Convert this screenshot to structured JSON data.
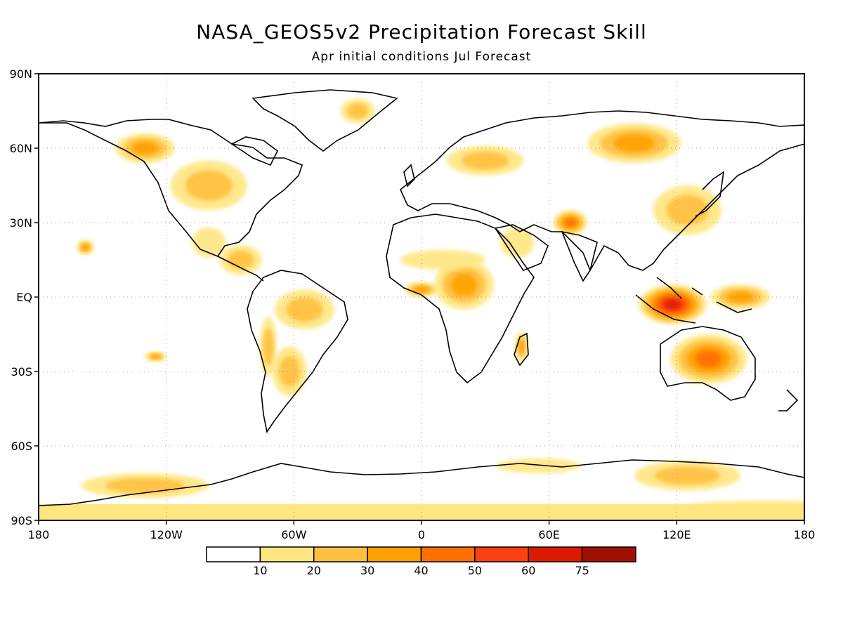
{
  "title": "NASA_GEOS5v2 Precipitation Forecast Skill",
  "subtitle": "Apr initial conditions  Jul Forecast",
  "map": {
    "type": "heatmap",
    "lat_labels": [
      "90N",
      "60N",
      "30N",
      "EQ",
      "30S",
      "60S",
      "90S"
    ],
    "lat_values": [
      90,
      60,
      30,
      0,
      -30,
      -60,
      -90
    ],
    "lon_labels": [
      "180",
      "120W",
      "60W",
      "0",
      "60E",
      "120E",
      "180"
    ],
    "lon_values": [
      -180,
      -120,
      -60,
      0,
      60,
      120,
      180
    ],
    "xlim": [
      -180,
      180
    ],
    "ylim": [
      -90,
      90
    ],
    "grid": true
  },
  "colorbar": {
    "labels": [
      "10",
      "20",
      "30",
      "40",
      "50",
      "60",
      "75"
    ],
    "colors": [
      "#ffffff",
      "#ffe680",
      "#ffc040",
      "#ffa000",
      "#ff7000",
      "#ff4010",
      "#dd1a00",
      "#a01000"
    ]
  },
  "regions": [
    {
      "name": "indonesia-maritime-continent",
      "lon": 118,
      "lat": -3,
      "rx": 16,
      "ry": 8,
      "level": 6
    },
    {
      "name": "australia-interior",
      "lon": 135,
      "lat": -25,
      "rx": 18,
      "ry": 10,
      "level": 4
    },
    {
      "name": "central-africa",
      "lon": 20,
      "lat": 5,
      "rx": 14,
      "ry": 10,
      "level": 3
    },
    {
      "name": "gulf-of-guinea",
      "lon": 0,
      "lat": 3,
      "rx": 8,
      "ry": 3,
      "level": 3
    },
    {
      "name": "pakistan-india",
      "lon": 70,
      "lat": 30,
      "rx": 8,
      "ry": 5,
      "level": 4
    },
    {
      "name": "siberia",
      "lon": 100,
      "lat": 62,
      "rx": 22,
      "ry": 8,
      "level": 3
    },
    {
      "name": "eastern-europe",
      "lon": 30,
      "lat": 55,
      "rx": 18,
      "ry": 6,
      "level": 2
    },
    {
      "name": "alaska-canada",
      "lon": -130,
      "lat": 60,
      "rx": 14,
      "ry": 6,
      "level": 3
    },
    {
      "name": "central-north-america",
      "lon": -100,
      "lat": 45,
      "rx": 18,
      "ry": 10,
      "level": 2
    },
    {
      "name": "brazil",
      "lon": -55,
      "lat": -5,
      "rx": 14,
      "ry": 8,
      "level": 2
    },
    {
      "name": "central-america",
      "lon": -85,
      "lat": 15,
      "rx": 10,
      "ry": 6,
      "level": 2
    },
    {
      "name": "south-america-south",
      "lon": -62,
      "lat": -30,
      "rx": 8,
      "ry": 10,
      "level": 2
    },
    {
      "name": "china-japan",
      "lon": 125,
      "lat": 35,
      "rx": 16,
      "ry": 10,
      "level": 2
    },
    {
      "name": "new-guinea-pacific",
      "lon": 150,
      "lat": 0,
      "rx": 14,
      "ry": 5,
      "level": 3
    },
    {
      "name": "southern-ocean-east",
      "lon": 125,
      "lat": -72,
      "rx": 25,
      "ry": 6,
      "level": 2
    },
    {
      "name": "southern-ocean-west",
      "lon": -130,
      "lat": -76,
      "rx": 30,
      "ry": 5,
      "level": 2
    },
    {
      "name": "antarctic-coast-60e",
      "lon": 55,
      "lat": -68,
      "rx": 20,
      "ry": 3,
      "level": 1
    },
    {
      "name": "greenland-east",
      "lon": -30,
      "lat": 75,
      "rx": 8,
      "ry": 5,
      "level": 2
    },
    {
      "name": "arabian-peninsula",
      "lon": 45,
      "lat": 22,
      "rx": 8,
      "ry": 6,
      "level": 1
    },
    {
      "name": "madagascar",
      "lon": 47,
      "lat": -20,
      "rx": 3,
      "ry": 6,
      "level": 3
    },
    {
      "name": "mexico",
      "lon": -100,
      "lat": 22,
      "rx": 8,
      "ry": 6,
      "level": 1
    },
    {
      "name": "sahel",
      "lon": 10,
      "lat": 15,
      "rx": 20,
      "ry": 4,
      "level": 1
    },
    {
      "name": "andes",
      "lon": -72,
      "lat": -20,
      "rx": 4,
      "ry": 12,
      "level": 2
    },
    {
      "name": "pacific-south",
      "lon": -125,
      "lat": -24,
      "rx": 5,
      "ry": 2,
      "level": 3
    },
    {
      "name": "hawaii-area",
      "lon": -158,
      "lat": 20,
      "rx": 4,
      "ry": 3,
      "level": 3
    },
    {
      "name": "antarctica-ross",
      "lon": 160,
      "lat": -85,
      "rx": 40,
      "ry": 3,
      "level": 1
    }
  ]
}
